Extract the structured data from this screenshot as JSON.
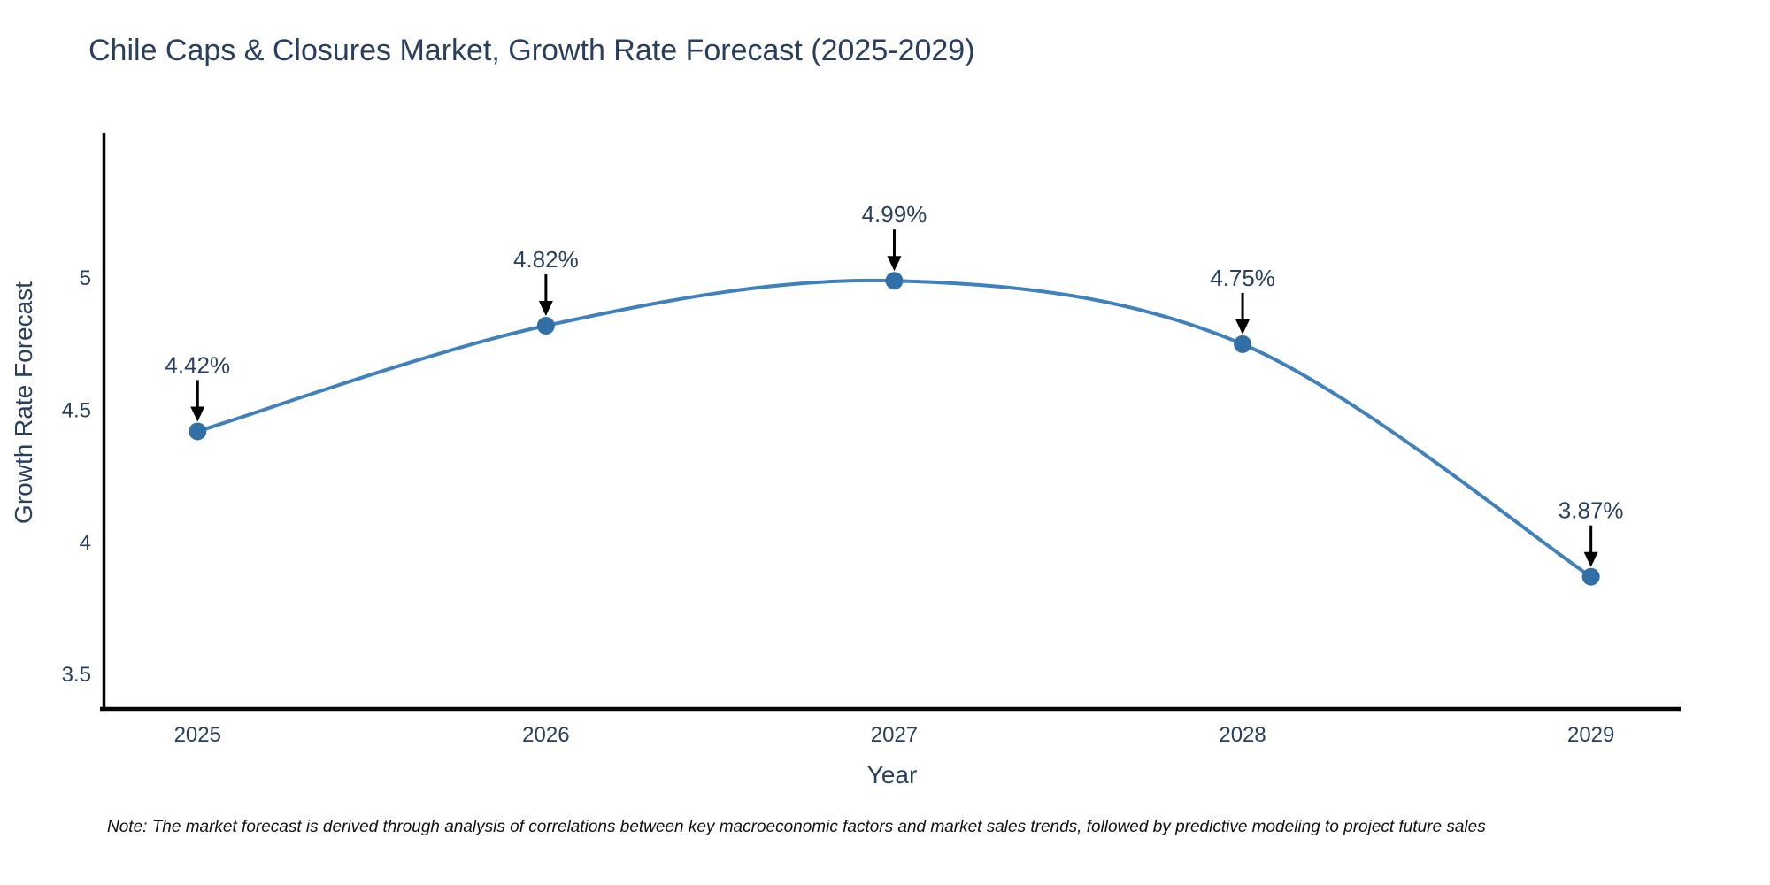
{
  "title": "Chile Caps & Closures Market, Growth Rate Forecast (2025-2029)",
  "note": "Note: The market forecast is derived through analysis of correlations between key macroeconomic factors and market sales trends, followed by predictive modeling to project future sales",
  "chart_data": {
    "type": "line",
    "title": "Chile Caps & Closures Market, Growth Rate Forecast (2025-2029)",
    "xlabel": "Year",
    "ylabel": "Growth Rate Forecast",
    "x": [
      2025,
      2026,
      2027,
      2028,
      2029
    ],
    "values": [
      4.42,
      4.82,
      4.99,
      4.75,
      3.87
    ],
    "point_labels": [
      "4.42%",
      "4.82%",
      "4.99%",
      "4.75%",
      "3.87%"
    ],
    "xtick_labels": [
      "2025",
      "2026",
      "2027",
      "2028",
      "2029"
    ],
    "yticks": [
      3.5,
      4,
      4.5,
      5
    ],
    "ytick_labels": [
      "3.5",
      "4",
      "4.5",
      "5"
    ],
    "xlim": [
      2024.73,
      2029.26
    ],
    "ylim": [
      3.37,
      5.55
    ],
    "line_shape": "spline",
    "grid": false,
    "legend_position": "none",
    "annotation_arrows": true,
    "colors": {
      "line": "#3f81bc",
      "marker": "#336fa7",
      "arrow": "#000000",
      "axis": "#000000",
      "tick_text": "#2a3f5f",
      "title_text": "#2a3f5f"
    }
  }
}
